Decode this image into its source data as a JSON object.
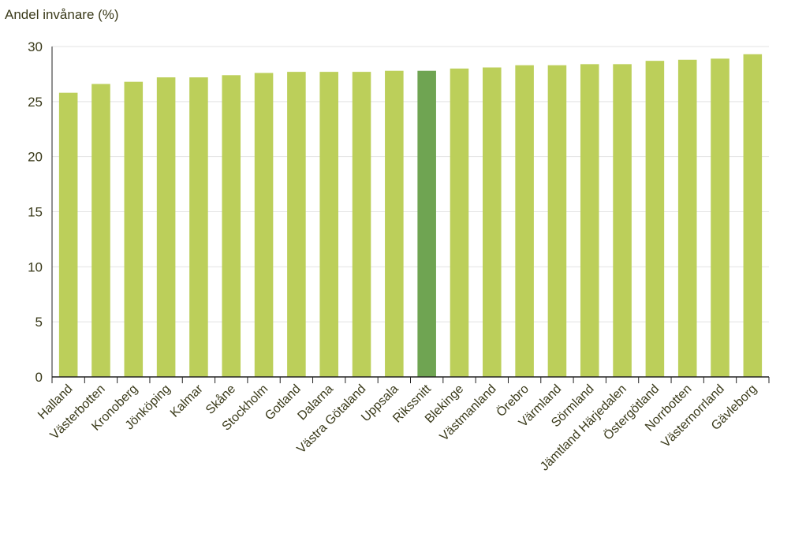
{
  "chart_data": {
    "type": "bar",
    "ylabel": "Andel invånare (%)",
    "xlabel": "",
    "ylim": [
      0,
      30
    ],
    "yticks": [
      "0",
      "5",
      "10",
      "15",
      "20",
      "25",
      "30"
    ],
    "grid": true,
    "categories": [
      "Halland",
      "Västerbotten",
      "Kronoberg",
      "Jönköping",
      "Kalmar",
      "Skåne",
      "Stockholm",
      "Gotland",
      "Dalarna",
      "Västra Götaland",
      "Uppsala",
      "Rikssnitt",
      "Blekinge",
      "Västmanland",
      "Örebro",
      "Värmland",
      "Sörmland",
      "Jämtland Härjedalen",
      "Östergötland",
      "Norrbotten",
      "Västernorrland",
      "Gävleborg"
    ],
    "values": [
      25.8,
      26.6,
      26.8,
      27.2,
      27.2,
      27.4,
      27.6,
      27.7,
      27.7,
      27.7,
      27.8,
      27.8,
      28.0,
      28.1,
      28.3,
      28.3,
      28.4,
      28.4,
      28.7,
      28.8,
      28.9,
      29.3
    ],
    "highlight": "Rikssnitt",
    "colors": {
      "bar": "#bccf5a",
      "highlight": "#6fa452",
      "grid": "#e3e3e3",
      "axis": "#222222",
      "text": "#3a3a1a"
    }
  }
}
